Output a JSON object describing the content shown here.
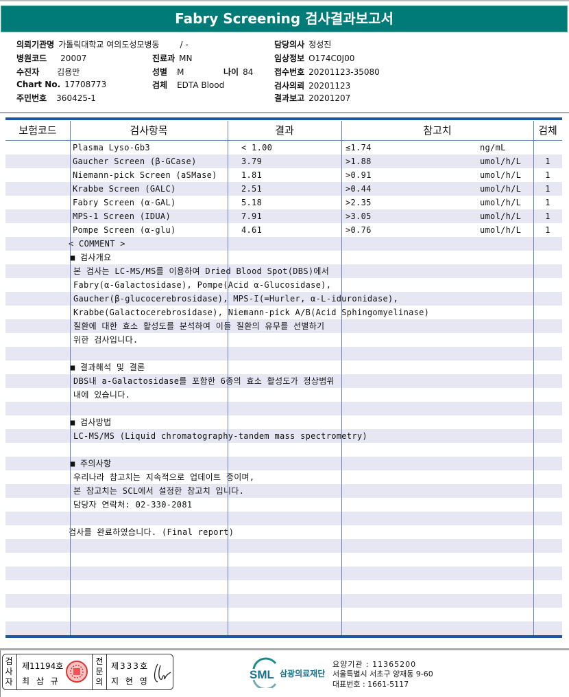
{
  "title": "Fabry Screening 검사결과보고서",
  "patient_info": {
    "institution_label": "의뢰기관명",
    "institution": "가톨릭대학교 여의도성모병동",
    "ward": "/ -",
    "hospital_code_label": "병원코드",
    "hospital_code": "20007",
    "department_label": "진료과",
    "department": "MN",
    "patient_label": "수진자",
    "patient": "김용만",
    "sex_label": "성별",
    "sex": "M",
    "age_label": "나이",
    "age": "84",
    "chart_label": "Chart No.",
    "chart_no": "17708773",
    "specimen_label": "검체",
    "specimen": "EDTA Blood",
    "id_label": "주민번호",
    "id_no": "360425-1",
    "doctor_label": "담당의사",
    "doctor": "정성진",
    "clinical_label": "임상정보",
    "clinical": "O174C0J00",
    "receipt_label": "접수번호",
    "receipt": "20201123-35080",
    "request_label": "검사의뢰",
    "request_date": "20201123",
    "report_label": "결과보고",
    "report_date": "20201207"
  },
  "table": {
    "headers": [
      "보험코드",
      "검사항목",
      "결과",
      "참고치",
      "검체"
    ],
    "rows": [
      {
        "item": "Plasma Lyso-Gb3",
        "result": "< 1.00",
        "ref": "≤1.74",
        "unit": "ng/mL",
        "specimen": ""
      },
      {
        "item": "Gaucher Screen (β-GCase)",
        "result": "3.79",
        "ref": ">1.88",
        "unit": "umol/h/L",
        "specimen": "1"
      },
      {
        "item": "Niemann-pick Screen (aSMase)",
        "result": "1.81",
        "ref": ">0.91",
        "unit": "umol/h/L",
        "specimen": "1"
      },
      {
        "item": "Krabbe Screen (GALC)",
        "result": "2.51",
        "ref": ">0.44",
        "unit": "umol/h/L",
        "specimen": "1"
      },
      {
        "item": "Fabry Screen (α-GAL)",
        "result": "5.18",
        "ref": ">2.35",
        "unit": "umol/h/L",
        "specimen": "1"
      },
      {
        "item": "MPS-1 Screen (IDUA)",
        "result": "7.91",
        "ref": ">3.05",
        "unit": "umol/h/L",
        "specimen": "1"
      },
      {
        "item": "Pompe Screen (α-glu)",
        "result": "4.61",
        "ref": ">0.76",
        "unit": "umol/h/L",
        "specimen": "1"
      }
    ]
  },
  "comment": [
    {
      "text": "< COMMENT >",
      "kind": "plain"
    },
    {
      "text": "■ 검사개요",
      "kind": "heading"
    },
    {
      "text": "본 검사는 LC-MS/MS를 이용하여 Dried Blood Spot(DBS)에서",
      "kind": "body"
    },
    {
      "text": "Fabry(α-Galactosidase), Pompe(Acid α-Glucosidase),",
      "kind": "body"
    },
    {
      "text": "Gaucher(β-glucocerebrosidase), MPS-I(=Hurler, α-L-iduronidase),",
      "kind": "body"
    },
    {
      "text": "Krabbe(Galactocerebrosidase), Niemann-pick A/B(Acid Sphingomyelinase)",
      "kind": "body"
    },
    {
      "text": "질환에 대한 효소 활성도를 분석하여 이들 질환의 유무를 선별하기",
      "kind": "body"
    },
    {
      "text": "위한 검사입니다.",
      "kind": "body"
    },
    {
      "text": "",
      "kind": "blank"
    },
    {
      "text": "■ 결과해석 및 결론",
      "kind": "heading"
    },
    {
      "text": "DBS내 a-Galactosidase를 포함한 6종의 효소 활성도가 정상범위",
      "kind": "body"
    },
    {
      "text": "내에 있습니다.",
      "kind": "body"
    },
    {
      "text": "",
      "kind": "blank"
    },
    {
      "text": "■ 검사방법",
      "kind": "heading"
    },
    {
      "text": "LC-MS/MS (Liquid chromatography-tandem mass spectrometry)",
      "kind": "body"
    },
    {
      "text": "",
      "kind": "blank"
    },
    {
      "text": "■ 주의사항",
      "kind": "heading"
    },
    {
      "text": "우리나라 참고치는 지속적으로 업데이트 중이며,",
      "kind": "body"
    },
    {
      "text": "본 참고치는 SCL에서 설정한 참고치 입니다.",
      "kind": "body"
    },
    {
      "text": "담당자 연락처: 02-330-2081",
      "kind": "body"
    },
    {
      "text": "",
      "kind": "blank"
    },
    {
      "text": "검사를  완료하였습니다. (Final report)",
      "kind": "plain"
    }
  ],
  "footer": {
    "tester_label": "검사자",
    "tester_no": "제11194호",
    "tester_name": "최 삼 규",
    "specialist_label": "전문의",
    "specialist_no": "제333호",
    "specialist_name": "지 현 영",
    "logo_text": "SML",
    "org_name": "삼광의료재단",
    "care_code": "요양기관 : 11365200",
    "address": "서울특별시 서초구 양재동 9-60",
    "phone": "대표번호 : 1661-5117"
  },
  "colors": {
    "title_bar": "#007b77",
    "table_rule": "#1f56a0",
    "stripe": "#e6e7f3",
    "stamp": "#d33"
  }
}
